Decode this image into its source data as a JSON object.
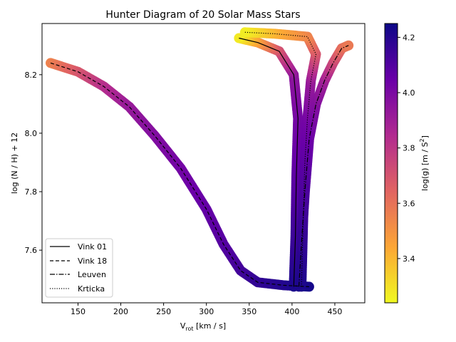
{
  "chart_data": {
    "type": "scatter",
    "title": "Hunter Diagram of 20 Solar Mass Stars",
    "xlabel_main": "V",
    "xlabel_sub": "rot",
    "xlabel_rest": " [km / s]",
    "ylabel": "log (N / H) + 12",
    "xlim": [
      108,
      485
    ],
    "ylim": [
      7.42,
      8.375
    ],
    "xticks": [
      150,
      200,
      250,
      300,
      350,
      400,
      450
    ],
    "yticks": [
      7.6,
      7.8,
      8.0,
      8.2
    ],
    "colorbar": {
      "label": "log(g) [m / s²]",
      "label_main": "log(g) [m / ",
      "label_s": "S",
      "label_exp": "2",
      "label_end": "]",
      "range": [
        3.24,
        4.25
      ],
      "ticks": [
        3.4,
        3.6,
        3.8,
        4.0,
        4.2
      ],
      "colormap": "plasma",
      "stops": [
        "#f0f921",
        "#fca636",
        "#e16462",
        "#b12a90",
        "#6a00a8",
        "#0d0887"
      ]
    },
    "legend": {
      "placement": "lower-left",
      "entries": [
        {
          "label": "Vink 01",
          "style": "solid"
        },
        {
          "label": "Vink 18",
          "style": "dashed"
        },
        {
          "label": "Leuven",
          "style": "dashdot"
        },
        {
          "label": "Krticka",
          "style": "dotted"
        }
      ]
    },
    "series": [
      {
        "name": "Vink 18",
        "style": "dashed",
        "points": [
          {
            "x": 118,
            "y": 8.24,
            "g": 3.55
          },
          {
            "x": 150,
            "y": 8.21,
            "g": 3.68
          },
          {
            "x": 180,
            "y": 8.16,
            "g": 3.82
          },
          {
            "x": 210,
            "y": 8.09,
            "g": 3.92
          },
          {
            "x": 240,
            "y": 7.99,
            "g": 3.98
          },
          {
            "x": 270,
            "y": 7.88,
            "g": 4.02
          },
          {
            "x": 300,
            "y": 7.74,
            "g": 4.06
          },
          {
            "x": 320,
            "y": 7.62,
            "g": 4.09
          },
          {
            "x": 340,
            "y": 7.53,
            "g": 4.13
          },
          {
            "x": 360,
            "y": 7.49,
            "g": 4.17
          },
          {
            "x": 390,
            "y": 7.48,
            "g": 4.2
          },
          {
            "x": 420,
            "y": 7.475,
            "g": 4.23
          }
        ]
      },
      {
        "name": "Vink 01",
        "style": "solid",
        "points": [
          {
            "x": 402,
            "y": 7.475,
            "g": 4.22
          },
          {
            "x": 404,
            "y": 7.65,
            "g": 4.15
          },
          {
            "x": 405,
            "y": 7.85,
            "g": 4.08
          },
          {
            "x": 407,
            "y": 8.05,
            "g": 4.02
          },
          {
            "x": 402,
            "y": 8.2,
            "g": 3.95
          },
          {
            "x": 385,
            "y": 8.28,
            "g": 3.72
          },
          {
            "x": 360,
            "y": 8.31,
            "g": 3.48
          },
          {
            "x": 338,
            "y": 8.325,
            "g": 3.28
          }
        ]
      },
      {
        "name": "Leuven",
        "style": "dashdot",
        "points": [
          {
            "x": 408,
            "y": 7.475,
            "g": 4.22
          },
          {
            "x": 411,
            "y": 7.62,
            "g": 4.16
          },
          {
            "x": 415,
            "y": 7.8,
            "g": 4.1
          },
          {
            "x": 420,
            "y": 7.98,
            "g": 4.04
          },
          {
            "x": 428,
            "y": 8.1,
            "g": 3.98
          },
          {
            "x": 438,
            "y": 8.18,
            "g": 3.9
          },
          {
            "x": 448,
            "y": 8.24,
            "g": 3.75
          },
          {
            "x": 458,
            "y": 8.29,
            "g": 3.62
          },
          {
            "x": 466,
            "y": 8.3,
            "g": 3.58
          }
        ]
      },
      {
        "name": "Krticka",
        "style": "dotted",
        "points": [
          {
            "x": 411,
            "y": 7.475,
            "g": 4.22
          },
          {
            "x": 413,
            "y": 7.7,
            "g": 4.15
          },
          {
            "x": 415,
            "y": 7.9,
            "g": 4.08
          },
          {
            "x": 418,
            "y": 8.05,
            "g": 4.02
          },
          {
            "x": 422,
            "y": 8.18,
            "g": 3.92
          },
          {
            "x": 428,
            "y": 8.27,
            "g": 3.7
          },
          {
            "x": 418,
            "y": 8.33,
            "g": 3.55
          },
          {
            "x": 380,
            "y": 8.34,
            "g": 3.42
          },
          {
            "x": 345,
            "y": 8.345,
            "g": 3.27
          }
        ]
      }
    ]
  }
}
